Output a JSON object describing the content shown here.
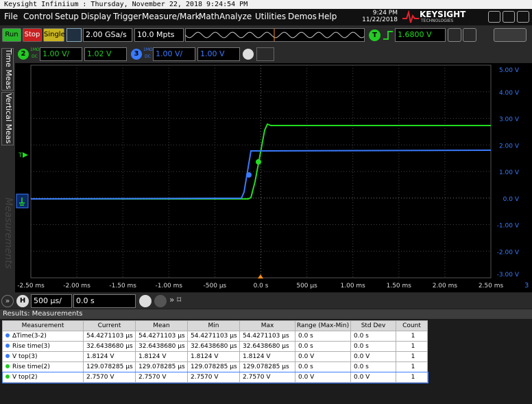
{
  "title_bar": "Keysight Infiniium : Thursday, November 22, 2018 9:24:54 PM",
  "menu": [
    "File",
    "Control",
    "Setup",
    "Display",
    "Trigger",
    "Measure/Mark",
    "Math",
    "Analyze",
    "Utilities",
    "Demos",
    "Help"
  ],
  "clock": {
    "time": "9:24 PM",
    "date": "11/22/2018"
  },
  "logo": {
    "brand": "KEYSIGHT",
    "sub": "TECHNOLOGIES"
  },
  "toolbar": {
    "run": "Run",
    "stop": "Stop",
    "single": "Single",
    "sample_rate": "2.00 GSa/s",
    "memory_depth": "10.0 Mpts",
    "trigger_badge": "T",
    "trigger_level": "1.6800 V"
  },
  "channels": [
    {
      "number": "2",
      "impedance": "1MΩ",
      "coupling": "DC",
      "scale": "1.00 V/",
      "offset": "1.02 V",
      "color": "#22cc22"
    },
    {
      "number": "3",
      "impedance": "1MΩ",
      "coupling": "DC",
      "scale": "1.00 V/",
      "offset": "1.00 V",
      "color": "#3a7bff"
    }
  ],
  "side_tabs": [
    "Time Meas",
    "Vertical Meas",
    "Measurements"
  ],
  "graticule": {
    "y_labels": [
      "5.00 V",
      "4.00 V",
      "3.00 V",
      "2.00 V",
      "1.00 V",
      "0.0 V",
      "-1.00 V",
      "-2.00 V",
      "-3.00 V"
    ],
    "x_labels": [
      "-2.50 ms",
      "-2.00 ms",
      "-1.50 ms",
      "-1.00 ms",
      "-500 µs",
      "0.0 s",
      "500 µs",
      "1.00 ms",
      "1.50 ms",
      "2.00 ms",
      "2.50 ms"
    ],
    "axis_channel": "3",
    "trigger_marker": "T"
  },
  "horizontal": {
    "badge": "H",
    "scale": "500 µs/",
    "position": "0.0 s"
  },
  "results": {
    "title": "Results: Measurements",
    "columns": [
      "Measurement",
      "Current",
      "Mean",
      "Min",
      "Max",
      "Range (Max-Min)",
      "Std Dev",
      "Count"
    ],
    "rows": [
      {
        "color": "#3a7bff",
        "cells": [
          "ΔTime(3-2)",
          "54.4271103 µs",
          "54.4271103 µs",
          "54.4271103 µs",
          "54.4271103 µs",
          "0.0 s",
          "0.0 s",
          "1"
        ]
      },
      {
        "color": "#3a7bff",
        "cells": [
          "Rise time(3)",
          "32.6438680 µs",
          "32.6438680 µs",
          "32.6438680 µs",
          "32.6438680 µs",
          "0.0 s",
          "0.0 s",
          "1"
        ]
      },
      {
        "color": "#3a7bff",
        "cells": [
          "V top(3)",
          "1.8124 V",
          "1.8124 V",
          "1.8124 V",
          "1.8124 V",
          "0.0 V",
          "0.0 V",
          "1"
        ]
      },
      {
        "color": "#22cc22",
        "cells": [
          "Rise time(2)",
          "129.078285 µs",
          "129.078285 µs",
          "129.078285 µs",
          "129.078285 µs",
          "0.0 s",
          "0.0 s",
          "1"
        ]
      },
      {
        "color": "#22cc22",
        "cells": [
          "V top(2)",
          "2.7570 V",
          "2.7570 V",
          "2.7570 V",
          "2.7570 V",
          "0.0 V",
          "0.0 V",
          "1"
        ]
      }
    ]
  }
}
